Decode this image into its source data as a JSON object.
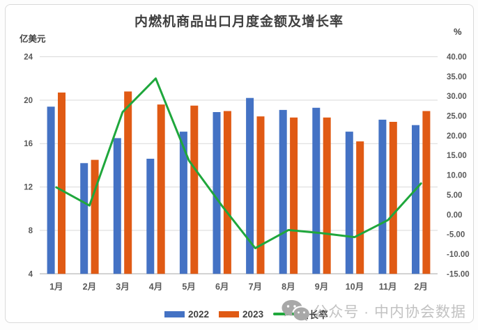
{
  "title": "内燃机商品出口月度金额及增长率",
  "left_axis_unit": "亿美元",
  "right_axis_unit": "%",
  "legend": {
    "items": [
      {
        "label": "2022",
        "type": "bar",
        "color": "#4472C4"
      },
      {
        "label": "2023",
        "type": "bar",
        "color": "#E05A14"
      },
      {
        "label": "增长率",
        "type": "line",
        "color": "#1FA73C"
      }
    ]
  },
  "watermark": {
    "icon": "wechat-icon",
    "text": "公众号 · 中内协会数据",
    "color": "#c2c2c2"
  },
  "colors": {
    "bar_2022": "#4472C4",
    "bar_2023": "#E05A14",
    "growth_line": "#1FA73C",
    "gridline": "#d9d9d9",
    "axis_line": "#bfbfbf",
    "tick_text": "#595959"
  },
  "chart_data": {
    "type": "bar",
    "subtype": "grouped-bars-with-line-overlay",
    "title": "内燃机商品出口月度金额及增长率",
    "categories": [
      "1月",
      "2月",
      "3月",
      "4月",
      "5月",
      "6月",
      "7月",
      "8月",
      "9月",
      "10月",
      "11月",
      "2月"
    ],
    "series": [
      {
        "name": "2022",
        "type": "bar",
        "axis": "left",
        "color": "#4472C4",
        "values": [
          19.4,
          14.2,
          16.5,
          14.6,
          17.1,
          18.9,
          20.2,
          19.1,
          19.3,
          17.1,
          18.2,
          17.7
        ]
      },
      {
        "name": "2023",
        "type": "bar",
        "axis": "left",
        "color": "#E05A14",
        "values": [
          20.7,
          14.5,
          20.8,
          19.6,
          19.5,
          19.0,
          18.5,
          18.4,
          18.4,
          16.2,
          18.0,
          19.0
        ]
      },
      {
        "name": "增长率",
        "type": "line",
        "axis": "right",
        "color": "#1FA73C",
        "values": [
          6.9,
          2.3,
          26.0,
          34.5,
          13.7,
          2.2,
          -8.5,
          -3.9,
          -4.7,
          -5.7,
          -1.4,
          7.9
        ]
      }
    ],
    "left_axis": {
      "label": "亿美元",
      "min": 4,
      "max": 24,
      "step": 4,
      "ticks": [
        "24",
        "20",
        "16",
        "12",
        "8",
        "4"
      ]
    },
    "right_axis": {
      "label": "%",
      "min": -15,
      "max": 40,
      "step": 5,
      "ticks": [
        "40.00",
        "35.00",
        "30.00",
        "25.00",
        "20.00",
        "15.00",
        "10.00",
        "5.00",
        "0.00",
        "-5.00",
        "-10.00",
        "-15.00"
      ]
    },
    "grid": true,
    "legend_position": "bottom"
  }
}
